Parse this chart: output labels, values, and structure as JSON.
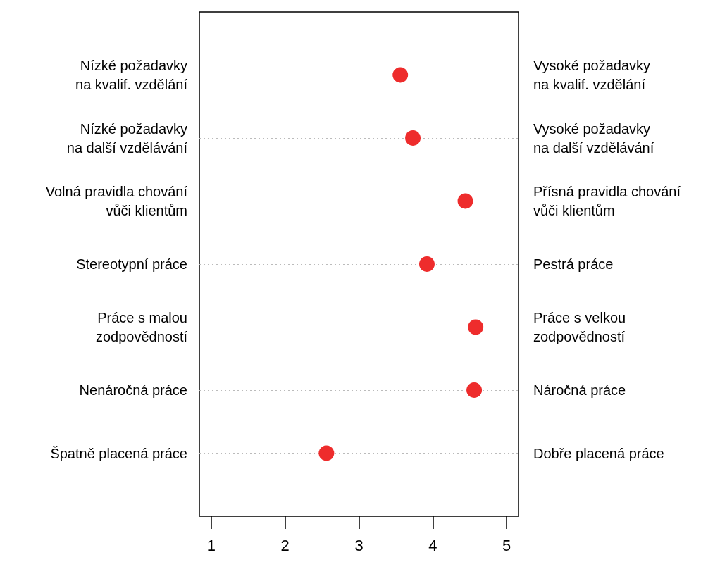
{
  "chart_data": {
    "type": "scatter",
    "categories": [
      "Nízké požadavky\nna kvalif. vzdělání",
      "Nízké požadavky\nna další vzdělávání",
      "Volná pravidla chování\nvůči klientům",
      "Stereotypní práce",
      "Práce s malou\nzodpovědností",
      "Nenáročná práce",
      "Špatně placená práce"
    ],
    "y2_categories": [
      "Vysoké požadavky\nna kvalif. vzdělání",
      "Vysoké požadavky\nna další vzdělávání",
      "Přísná pravidla chování\nvůči klientům",
      "Pestrá práce",
      "Práce s velkou\nzodpovědností",
      "Náročná práce",
      "Dobře placená práce"
    ],
    "orientation": "horizontal",
    "values": [
      3.56,
      3.73,
      4.44,
      3.92,
      4.58,
      4.56,
      2.56
    ],
    "color": "#ee2c2c",
    "marker": "circle",
    "xlim": [
      0.84,
      5.16
    ],
    "xticks": [
      1,
      2,
      3,
      4,
      5
    ],
    "grid": "y"
  }
}
